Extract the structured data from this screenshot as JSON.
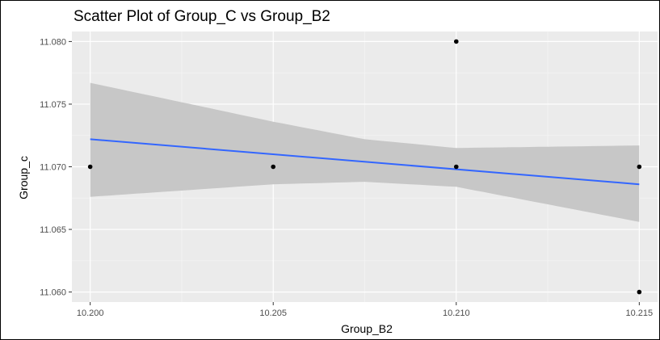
{
  "chart_data": {
    "type": "scatter",
    "title": "Scatter Plot of Group_C vs Group_B2",
    "xlabel": "Group_B2",
    "ylabel": "Group_c",
    "xlim": [
      10.1995,
      10.2155
    ],
    "ylim": [
      11.0592,
      11.0808
    ],
    "x_ticks": [
      10.2,
      10.205,
      10.21,
      10.215
    ],
    "x_tick_labels": [
      "10.200",
      "10.205",
      "10.210",
      "10.215"
    ],
    "y_ticks": [
      11.06,
      11.065,
      11.07,
      11.075,
      11.08
    ],
    "y_tick_labels": [
      "11.060",
      "11.065",
      "11.070",
      "11.075",
      "11.080"
    ],
    "grid": true,
    "points": [
      {
        "x": 10.2,
        "y": 11.07
      },
      {
        "x": 10.205,
        "y": 11.07
      },
      {
        "x": 10.21,
        "y": 11.08
      },
      {
        "x": 10.21,
        "y": 11.07
      },
      {
        "x": 10.215,
        "y": 11.07
      },
      {
        "x": 10.215,
        "y": 11.06
      }
    ],
    "trend_line": {
      "x": [
        10.2,
        10.215
      ],
      "y": [
        11.0722,
        11.0686
      ]
    },
    "confidence_band": {
      "x": [
        10.2,
        10.205,
        10.2075,
        10.21,
        10.215
      ],
      "lower": [
        11.0676,
        11.0686,
        11.0688,
        11.0684,
        11.0656
      ],
      "upper": [
        11.0767,
        11.0736,
        11.0722,
        11.0715,
        11.0717
      ]
    },
    "colors": {
      "panel": "#ebebeb",
      "grid_major": "#ffffff",
      "grid_minor": "#f4f4f4",
      "point": "#000000",
      "line": "#3366ff",
      "band": "#c7c7c7"
    }
  }
}
